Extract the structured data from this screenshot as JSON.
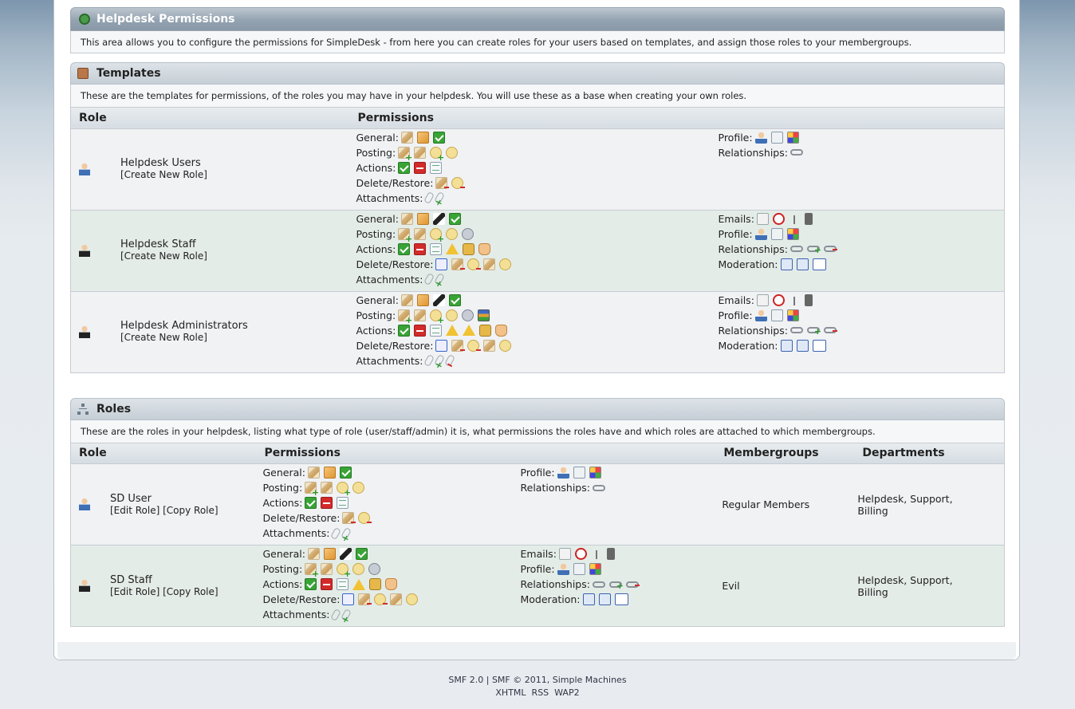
{
  "title": "Helpdesk Permissions",
  "intro": "This area allows you to configure the permissions for SimpleDesk - from here you can create roles for your users based on templates, and assign those roles to your membergroups.",
  "templates": {
    "title": "Templates",
    "desc": "These are the templates for permissions, of the roles you may have in your helpdesk. You will use these as a base when creating your own roles.",
    "col_role": "Role",
    "col_permissions": "Permissions",
    "create_link": "[Create New Role]",
    "rows": [
      {
        "name": "Helpdesk Users"
      },
      {
        "name": "Helpdesk Staff"
      },
      {
        "name": "Helpdesk Administrators"
      }
    ]
  },
  "roles": {
    "title": "Roles",
    "desc": "These are the roles in your helpdesk, listing what type of role (user/staff/admin) it is, what permissions the roles have and which roles are attached to which membergroups.",
    "col_role": "Role",
    "col_permissions": "Permissions",
    "col_membergroups": "Membergroups",
    "col_departments": "Departments",
    "edit_link": "[Edit Role]",
    "copy_link": "[Copy Role]",
    "rows": [
      {
        "name": "SD User",
        "membergroups": "Regular Members",
        "departments": "Helpdesk, Support, Billing"
      },
      {
        "name": "SD Staff",
        "membergroups": "Evil",
        "departments": "Helpdesk, Support, Billing"
      }
    ]
  },
  "labels": {
    "general": "General:",
    "posting": "Posting:",
    "actions": "Actions:",
    "delete_restore": "Delete/Restore:",
    "attachments": "Attachments:",
    "emails": "Emails:",
    "profile": "Profile:",
    "relationships": "Relationships:",
    "moderation": "Moderation:"
  },
  "footer": {
    "smf": "SMF 2.0",
    "sep": "|",
    "copyright": "SMF © 2011, Simple Machines",
    "xhtml": "XHTML",
    "rss": "RSS",
    "wap2": "WAP2"
  }
}
